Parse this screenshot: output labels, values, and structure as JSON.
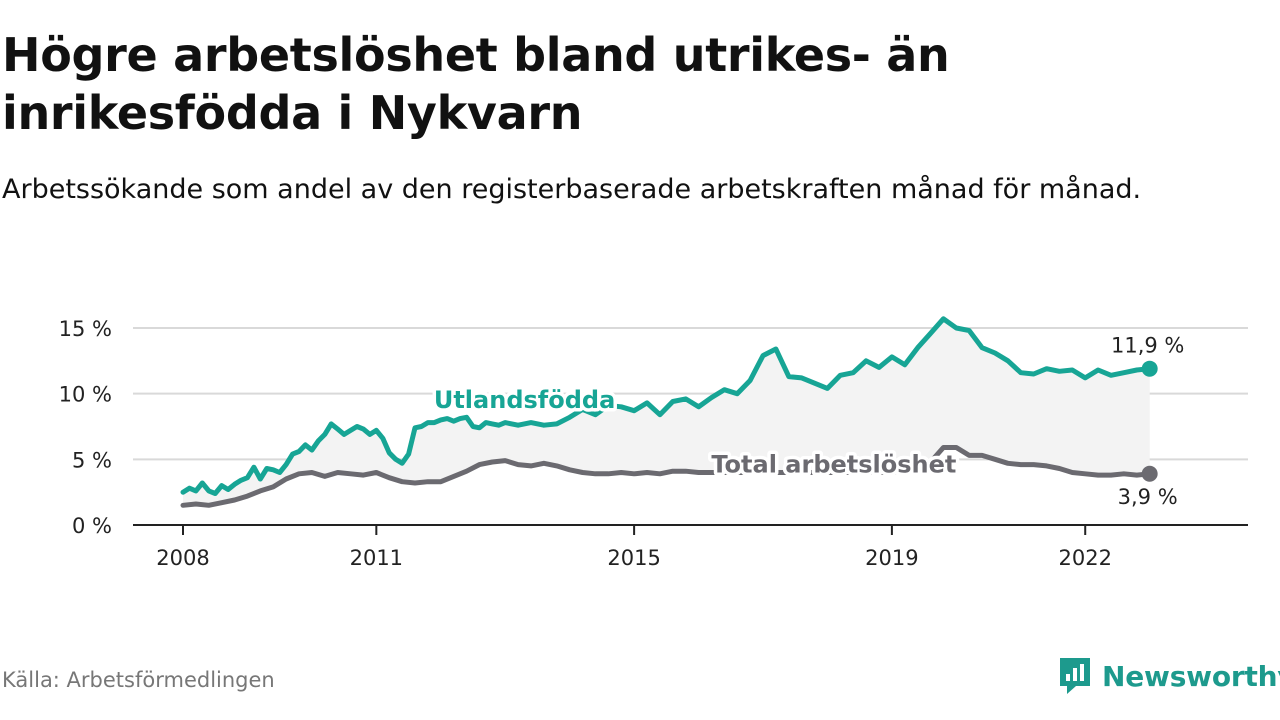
{
  "header": {
    "title": "Högre arbetslöshet bland utrikes- än inrikesfödda i Nykvarn",
    "subtitle": "Arbetssökande som andel av den registerbaserade arbetskraften månad för månad."
  },
  "footer": {
    "source": "Källa: Arbetsförmedlingen",
    "brand": "Newsworthy"
  },
  "colors": {
    "foreign": "#17a595",
    "total": "#6b6a70",
    "band": "#f3f3f3",
    "grid": "#d9d9d9",
    "brand": "#1d9a8d"
  },
  "chart_data": {
    "type": "line",
    "title": "Högre arbetslöshet bland utrikes- än inrikesfödda i Nykvarn",
    "xlabel": "",
    "ylabel": "",
    "xlim": [
      2008.0,
      2023.75
    ],
    "ylim": [
      0,
      15
    ],
    "y_ticks": [
      0,
      5,
      10,
      15
    ],
    "y_tick_labels": [
      "0 %",
      "5 %",
      "10 %",
      "15 %"
    ],
    "x_ticks": [
      2008,
      2011,
      2015,
      2019,
      2022
    ],
    "x_tick_labels": [
      "2008",
      "2011",
      "2015",
      "2019",
      "2022"
    ],
    "series": [
      {
        "name": "Utlandsfödda",
        "label": "Utlandsfödda",
        "end_label": "11,9 %",
        "x": [
          2008.0,
          2008.1,
          2008.2,
          2008.3,
          2008.4,
          2008.5,
          2008.6,
          2008.7,
          2008.8,
          2008.9,
          2009.0,
          2009.1,
          2009.2,
          2009.3,
          2009.4,
          2009.5,
          2009.6,
          2009.7,
          2009.8,
          2009.9,
          2010.0,
          2010.1,
          2010.2,
          2010.3,
          2010.4,
          2010.5,
          2010.6,
          2010.7,
          2010.8,
          2010.9,
          2011.0,
          2011.1,
          2011.2,
          2011.3,
          2011.4,
          2011.5,
          2011.6,
          2011.7,
          2011.8,
          2011.9,
          2012.0,
          2012.1,
          2012.2,
          2012.3,
          2012.4,
          2012.5,
          2012.6,
          2012.7,
          2012.8,
          2012.9,
          2013.0,
          2013.2,
          2013.4,
          2013.6,
          2013.8,
          2014.0,
          2014.2,
          2014.4,
          2014.6,
          2014.8,
          2015.0,
          2015.2,
          2015.4,
          2015.6,
          2015.8,
          2016.0,
          2016.2,
          2016.4,
          2016.6,
          2016.8,
          2017.0,
          2017.2,
          2017.4,
          2017.6,
          2017.8,
          2018.0,
          2018.2,
          2018.4,
          2018.6,
          2018.8,
          2019.0,
          2019.2,
          2019.4,
          2019.6,
          2019.8,
          2020.0,
          2020.2,
          2020.4,
          2020.6,
          2020.8,
          2021.0,
          2021.2,
          2021.4,
          2021.6,
          2021.8,
          2022.0,
          2022.2,
          2022.4,
          2022.6,
          2022.8,
          2023.0
        ],
        "values": [
          2.5,
          2.8,
          2.6,
          3.2,
          2.6,
          2.4,
          3.0,
          2.7,
          3.1,
          3.4,
          3.6,
          4.4,
          3.5,
          4.3,
          4.2,
          4.0,
          4.6,
          5.4,
          5.6,
          6.1,
          5.7,
          6.4,
          6.9,
          7.7,
          7.3,
          6.9,
          7.2,
          7.5,
          7.3,
          6.9,
          7.2,
          6.6,
          5.5,
          5.0,
          4.7,
          5.4,
          7.4,
          7.5,
          7.8,
          7.8,
          8.0,
          8.1,
          7.9,
          8.1,
          8.2,
          7.5,
          7.4,
          7.8,
          7.7,
          7.6,
          7.8,
          7.6,
          7.8,
          7.6,
          7.7,
          8.2,
          8.8,
          8.4,
          9.1,
          9.0,
          8.7,
          9.3,
          8.4,
          9.4,
          9.6,
          9.0,
          9.7,
          10.3,
          10.0,
          11.0,
          12.9,
          13.4,
          11.3,
          11.2,
          10.8,
          10.4,
          11.4,
          11.6,
          12.5,
          12.0,
          12.8,
          12.2,
          13.5,
          14.6,
          15.7,
          15.0,
          14.8,
          13.5,
          13.1,
          12.5,
          11.6,
          11.5,
          11.9,
          11.7,
          11.8,
          11.2,
          11.8,
          11.4,
          11.6,
          11.8,
          11.9
        ],
        "label_anchor": {
          "x": 2013.3,
          "y": 8.9
        }
      },
      {
        "name": "Total arbetslöshet",
        "label": "Total arbetslöshet",
        "end_label": "3,9 %",
        "x": [
          2008.0,
          2008.2,
          2008.4,
          2008.6,
          2008.8,
          2009.0,
          2009.2,
          2009.4,
          2009.6,
          2009.8,
          2010.0,
          2010.2,
          2010.4,
          2010.6,
          2010.8,
          2011.0,
          2011.2,
          2011.4,
          2011.6,
          2011.8,
          2012.0,
          2012.2,
          2012.4,
          2012.6,
          2012.8,
          2013.0,
          2013.2,
          2013.4,
          2013.6,
          2013.8,
          2014.0,
          2014.2,
          2014.4,
          2014.6,
          2014.8,
          2015.0,
          2015.2,
          2015.4,
          2015.6,
          2015.8,
          2016.0,
          2016.2,
          2016.4,
          2016.6,
          2016.8,
          2017.0,
          2017.2,
          2017.4,
          2017.6,
          2017.8,
          2018.0,
          2018.2,
          2018.4,
          2018.6,
          2018.8,
          2019.0,
          2019.2,
          2019.4,
          2019.6,
          2019.8,
          2020.0,
          2020.2,
          2020.4,
          2020.6,
          2020.8,
          2021.0,
          2021.2,
          2021.4,
          2021.6,
          2021.8,
          2022.0,
          2022.2,
          2022.4,
          2022.6,
          2022.8,
          2023.0
        ],
        "values": [
          1.5,
          1.6,
          1.5,
          1.7,
          1.9,
          2.2,
          2.6,
          2.9,
          3.5,
          3.9,
          4.0,
          3.7,
          4.0,
          3.9,
          3.8,
          4.0,
          3.6,
          3.3,
          3.2,
          3.3,
          3.3,
          3.7,
          4.1,
          4.6,
          4.8,
          4.9,
          4.6,
          4.5,
          4.7,
          4.5,
          4.2,
          4.0,
          3.9,
          3.9,
          4.0,
          3.9,
          4.0,
          3.9,
          4.1,
          4.1,
          4.0,
          4.0,
          4.0,
          4.0,
          4.0,
          4.0,
          4.0,
          4.0,
          4.0,
          4.0,
          4.0,
          4.0,
          4.0,
          4.0,
          4.0,
          4.0,
          4.2,
          4.4,
          4.8,
          5.9,
          5.9,
          5.3,
          5.3,
          5.0,
          4.7,
          4.6,
          4.6,
          4.5,
          4.3,
          4.0,
          3.9,
          3.8,
          3.8,
          3.9,
          3.8,
          3.9
        ],
        "label_anchor": {
          "x": 2018.1,
          "y": 4.0
        }
      }
    ],
    "band_between_series": true,
    "legend": "inline labels on lines; end-point value labels on the right"
  }
}
